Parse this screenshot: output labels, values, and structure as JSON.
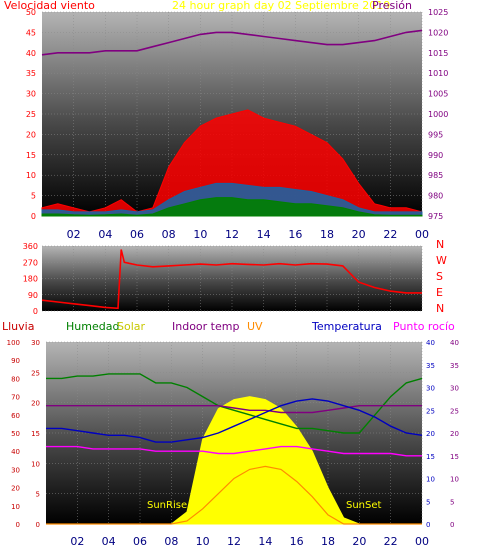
{
  "header": {
    "left_title": "Velocidad viento",
    "center_title": "24 hour graph day   02 Septiembre 2019",
    "right_title": "Presión"
  },
  "legend_bottom": {
    "lluvia": "Lluvia",
    "humedad": "Humedad",
    "solar": "Solar",
    "indoor": "Indoor temp",
    "uv": "UV",
    "temperatura": "Temperatura",
    "punto_rocio": "Punto rocío"
  },
  "annotations": {
    "sunrise": "SunRise",
    "sunset": "SunSet"
  },
  "colors": {
    "wind": "#ff0000",
    "gust_dark": "#2060a0",
    "wind_green": "#008000",
    "pressure": "#800080",
    "direction": "#ff0000",
    "humedad": "#008000",
    "solar": "#ffff00",
    "indoor": "#800080",
    "uv": "#ff8c00",
    "temperatura": "#0000c0",
    "punto_rocio": "#ff00ff",
    "lluvia": "#c80000"
  },
  "chart_data": [
    {
      "type": "line",
      "name": "wind-pressure",
      "x_ticks": [
        "02",
        "04",
        "06",
        "08",
        "10",
        "12",
        "14",
        "16",
        "18",
        "20",
        "22",
        "00"
      ],
      "ylim_left": [
        0,
        50
      ],
      "y_ticks_left": [
        "0",
        "5",
        "10",
        "15",
        "20",
        "25",
        "30",
        "35",
        "40",
        "45",
        "50"
      ],
      "ylim_right": [
        975,
        1025
      ],
      "y_ticks_right": [
        "975",
        "980",
        "985",
        "990",
        "995",
        "1000",
        "1005",
        "1010",
        "1015",
        "1020",
        "1025"
      ],
      "x": [
        0,
        1,
        2,
        3,
        4,
        5,
        6,
        7,
        8,
        9,
        10,
        11,
        12,
        13,
        14,
        15,
        16,
        17,
        18,
        19,
        20,
        21,
        22,
        23,
        24
      ],
      "series": [
        {
          "values": [
            2,
            3,
            2,
            1,
            2,
            4,
            1,
            2,
            12,
            18,
            22,
            24,
            25,
            26,
            24,
            23,
            22,
            20,
            18,
            14,
            8,
            3,
            2,
            2,
            1
          ]
        },
        {
          "values": [
            1.5,
            1.5,
            1,
            1,
            1,
            1.5,
            1,
            1.5,
            4,
            6,
            7,
            8,
            8,
            7.5,
            7,
            7,
            6.5,
            6,
            5,
            4,
            2,
            1,
            1,
            1,
            1
          ]
        },
        {
          "values": [
            0.5,
            0.5,
            0.3,
            0.2,
            0.3,
            0.5,
            0.2,
            0.5,
            2,
            3,
            4,
            4.5,
            4.5,
            4,
            4,
            3.5,
            3,
            3,
            2.5,
            2,
            1,
            0.3,
            0.2,
            0.2,
            0.2
          ]
        },
        {
          "values": [
            1014.5,
            1015,
            1015,
            1015,
            1015.5,
            1015.5,
            1015.5,
            1016.5,
            1017.5,
            1018.5,
            1019.5,
            1020,
            1020,
            1019.5,
            1019,
            1018.5,
            1018,
            1017.5,
            1017,
            1017,
            1017.5,
            1018,
            1019,
            1020,
            1020.5
          ]
        }
      ]
    },
    {
      "type": "line",
      "name": "wind-direction",
      "x_ticks": [
        "02",
        "04",
        "06",
        "08",
        "10",
        "12",
        "14",
        "16",
        "18",
        "20",
        "22",
        "00"
      ],
      "ylim": [
        0,
        360
      ],
      "y_ticks": [
        "0",
        "90",
        "180",
        "270",
        "360"
      ],
      "direction_labels": [
        "N",
        "W",
        "S",
        "E",
        "N"
      ],
      "x": [
        0,
        1,
        2,
        3,
        4,
        4.8,
        5,
        5.2,
        6,
        7,
        8,
        9,
        10,
        11,
        12,
        13,
        14,
        15,
        16,
        17,
        18,
        19,
        20,
        21,
        22,
        23,
        24
      ],
      "series": [
        {
          "values": [
            60,
            50,
            40,
            30,
            20,
            15,
            340,
            270,
            255,
            245,
            250,
            255,
            260,
            255,
            262,
            258,
            255,
            262,
            255,
            262,
            260,
            250,
            160,
            130,
            110,
            100,
            100
          ]
        }
      ]
    },
    {
      "type": "line",
      "name": "temperature-humidity-solar",
      "x_ticks": [
        "02",
        "04",
        "06",
        "08",
        "10",
        "12",
        "14",
        "16",
        "18",
        "20",
        "22",
        "00"
      ],
      "axes": {
        "lluvia": {
          "ylim": [
            0,
            100
          ],
          "ticks": [
            "0",
            "10",
            "20",
            "30",
            "40",
            "50",
            "60",
            "70",
            "80",
            "90",
            "100"
          ]
        },
        "solar_temp": {
          "ylim": [
            0,
            30
          ],
          "ticks": [
            "0",
            "5",
            "10",
            "15",
            "20",
            "25",
            "30"
          ]
        },
        "right_1": {
          "ylim": [
            0,
            40
          ],
          "ticks": [
            "0",
            "5",
            "10",
            "15",
            "20",
            "25",
            "30",
            "35",
            "40"
          ]
        },
        "right_2": {
          "ylim": [
            0,
            40
          ],
          "ticks": [
            "0",
            "5",
            "10",
            "15",
            "20",
            "25",
            "30",
            "35",
            "40"
          ]
        }
      },
      "x": [
        0,
        1,
        2,
        3,
        4,
        5,
        6,
        7,
        8,
        9,
        10,
        11,
        12,
        13,
        14,
        15,
        16,
        17,
        18,
        19,
        20,
        21,
        22,
        23,
        24
      ],
      "series": [
        {
          "values": [
            32,
            32,
            32.5,
            32.5,
            33,
            33,
            33,
            31,
            31,
            30,
            28,
            26,
            25,
            24,
            23,
            22,
            21,
            21,
            20.5,
            20,
            20,
            24,
            28,
            31,
            32
          ]
        },
        {
          "values": [
            0,
            0,
            0,
            0,
            0,
            0,
            0,
            0,
            0,
            2,
            14,
            19,
            20.5,
            21,
            20.5,
            19,
            16,
            12,
            6,
            1,
            0,
            0,
            0,
            0,
            0
          ]
        },
        {
          "values": [
            26,
            26,
            26,
            26,
            26,
            26,
            26,
            26,
            26,
            26,
            26,
            26,
            25.5,
            25,
            25,
            24.5,
            24.5,
            24.5,
            25,
            25.5,
            26,
            26,
            26,
            26,
            26
          ]
        },
        {
          "values": [
            0,
            0,
            0,
            0,
            0,
            0,
            0,
            0,
            0,
            0.5,
            2.5,
            5,
            7.5,
            9,
            9.5,
            9,
            7,
            4.5,
            1.5,
            0,
            0,
            0,
            0,
            0,
            0
          ]
        },
        {
          "values": [
            21,
            21,
            20.5,
            20,
            19.5,
            19.5,
            19,
            18,
            18,
            18.5,
            19,
            20,
            21.5,
            23,
            24.5,
            26,
            27,
            27.5,
            27,
            26,
            25,
            23.5,
            21.5,
            20,
            19.5
          ]
        },
        {
          "values": [
            17,
            17,
            17,
            16.5,
            16.5,
            16.5,
            16.5,
            16,
            16,
            16,
            16,
            15.5,
            15.5,
            16,
            16.5,
            17,
            17,
            16.5,
            16,
            15.5,
            15.5,
            15.5,
            15.5,
            15,
            15
          ]
        }
      ]
    }
  ]
}
